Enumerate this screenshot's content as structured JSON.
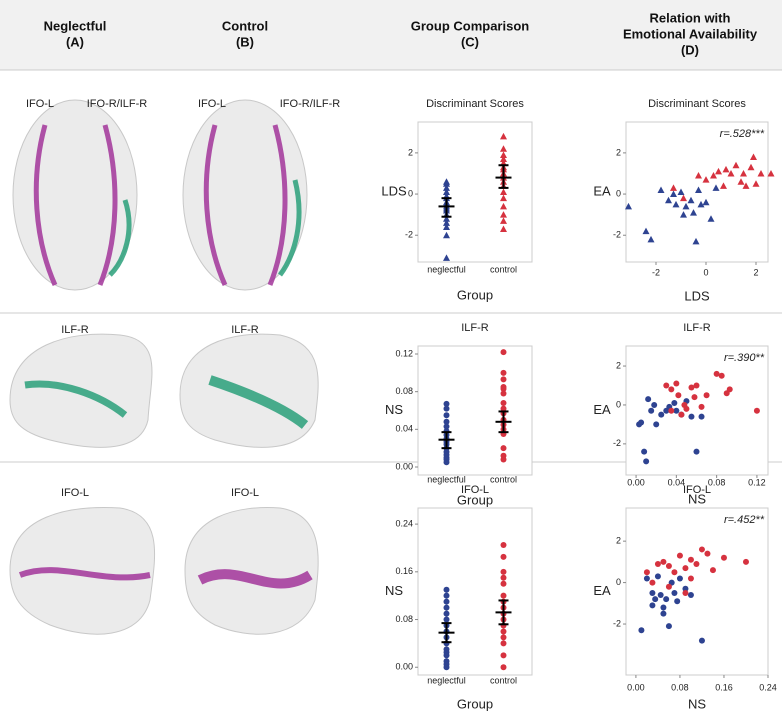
{
  "headers": [
    {
      "lines": [
        "Neglectful",
        "(A)"
      ]
    },
    {
      "lines": [
        "Control",
        "(B)"
      ]
    },
    {
      "lines": [
        "Group Comparison",
        "(C)"
      ]
    },
    {
      "lines": [
        "Relation with",
        "Emotional Availability",
        "(D)"
      ]
    }
  ],
  "brain_labels": [
    [
      "IFO-L",
      "IFO-R/ILF-R",
      "IFO-L",
      "IFO-R/ILF-R"
    ],
    [
      "ILF-R",
      "ILF-R"
    ],
    [
      "IFO-L",
      "IFO-L"
    ]
  ],
  "chart_data": [
    {
      "type": "strip",
      "title": "Discriminant Scores",
      "ylabel": "LDS",
      "xlabel": "Group",
      "marker": "triangle",
      "categories": [
        "neglectful",
        "control"
      ],
      "ylim": [
        -3.3,
        3.5
      ],
      "yticks": [
        -2,
        0,
        2
      ],
      "series": [
        {
          "color": "#2e4391",
          "values": [
            0.6,
            0.5,
            0.3,
            0.1,
            -0.1,
            -0.2,
            -0.4,
            -0.5,
            -0.6,
            -0.7,
            -0.8,
            -1.0,
            -1.2,
            -1.4,
            -1.6,
            -2.0,
            -3.1
          ],
          "mean": -0.6,
          "ci": [
            -1.1,
            -0.2
          ]
        },
        {
          "color": "#d6323f",
          "values": [
            2.8,
            2.2,
            1.9,
            1.7,
            1.5,
            1.3,
            1.2,
            1.0,
            0.8,
            0.6,
            0.4,
            0.1,
            -0.2,
            -0.6,
            -1.0,
            -1.3,
            -1.7
          ],
          "mean": 0.8,
          "ci": [
            0.3,
            1.4
          ]
        }
      ]
    },
    {
      "type": "scatter",
      "title": "Discriminant Scores",
      "ylabel": "EA",
      "xlabel": "LDS",
      "annotation": "r=.528***",
      "marker": "triangle",
      "xlim": [
        -3.2,
        2.48
      ],
      "xticks": [
        -2,
        0,
        2
      ],
      "ylim": [
        -3.3,
        3.5
      ],
      "yticks": [
        -2,
        0,
        2
      ],
      "series": [
        {
          "color": "#2e4391",
          "x": [
            -3.1,
            -2.4,
            -2.2,
            -1.8,
            -1.5,
            -1.3,
            -1.2,
            -1.0,
            -0.9,
            -0.8,
            -0.6,
            -0.5,
            -0.4,
            -0.3,
            -0.2,
            0.0,
            0.2,
            0.4
          ],
          "y": [
            -0.6,
            -1.8,
            -2.2,
            0.2,
            -0.3,
            0.0,
            -0.5,
            0.1,
            -1.0,
            -0.6,
            -0.3,
            -0.9,
            -2.3,
            0.2,
            -0.5,
            -0.4,
            -1.2,
            0.3
          ]
        },
        {
          "color": "#d6323f",
          "x": [
            -1.3,
            -0.9,
            -0.3,
            0.0,
            0.3,
            0.5,
            0.7,
            0.8,
            1.0,
            1.2,
            1.4,
            1.5,
            1.6,
            1.8,
            1.9,
            2.0,
            2.2,
            2.6
          ],
          "y": [
            0.3,
            -0.2,
            0.9,
            0.7,
            0.9,
            1.1,
            0.4,
            1.2,
            1.0,
            1.4,
            0.6,
            1.0,
            0.4,
            1.3,
            1.8,
            0.5,
            1.0,
            1.0
          ]
        }
      ]
    },
    {
      "type": "strip",
      "title": "ILF-R",
      "ylabel": "NS",
      "xlabel": "Group",
      "marker": "circle",
      "categories": [
        "neglectful",
        "control"
      ],
      "ylim": [
        -0.0085,
        0.1285
      ],
      "yticks": [
        {
          "value": 0,
          "label": "0.00"
        },
        0.04,
        0.08,
        0.12
      ],
      "series": [
        {
          "color": "#2e4391",
          "values": [
            0.067,
            0.062,
            0.055,
            0.048,
            0.043,
            0.038,
            0.034,
            0.03,
            0.027,
            0.024,
            0.02,
            0.016,
            0.013,
            0.01,
            0.008,
            0.005
          ],
          "mean": 0.029,
          "ci": [
            0.02,
            0.037
          ]
        },
        {
          "color": "#d6323f",
          "values": [
            0.122,
            0.1,
            0.093,
            0.085,
            0.083,
            0.078,
            0.068,
            0.062,
            0.057,
            0.05,
            0.045,
            0.04,
            0.035,
            0.02,
            0.012,
            0.008
          ],
          "mean": 0.048,
          "ci": [
            0.037,
            0.059
          ]
        }
      ]
    },
    {
      "type": "scatter",
      "title": "ILF-R",
      "ylabel": "EA",
      "xlabel": "NS",
      "annotation": "r=.390**",
      "marker": "circle",
      "xlim": [
        -0.01,
        0.131
      ],
      "xticks": [
        {
          "value": 0,
          "label": "0.00"
        },
        0.04,
        0.08,
        0.12
      ],
      "ylim": [
        -3.6,
        3.03
      ],
      "yticks": [
        -2,
        0,
        2
      ],
      "series": [
        {
          "color": "#2e4391",
          "x": [
            0.003,
            0.005,
            0.008,
            0.01,
            0.012,
            0.015,
            0.018,
            0.02,
            0.025,
            0.03,
            0.033,
            0.038,
            0.04,
            0.045,
            0.05,
            0.055,
            0.06,
            0.065
          ],
          "y": [
            -1.0,
            -0.9,
            -2.4,
            -2.9,
            0.3,
            -0.3,
            0.0,
            -1.0,
            -0.5,
            -0.3,
            -0.1,
            0.1,
            -0.3,
            -0.5,
            0.2,
            -0.6,
            -2.4,
            -0.6
          ]
        },
        {
          "color": "#d6323f",
          "x": [
            0.03,
            0.035,
            0.04,
            0.042,
            0.045,
            0.048,
            0.05,
            0.055,
            0.058,
            0.06,
            0.065,
            0.07,
            0.08,
            0.085,
            0.09,
            0.093,
            0.12,
            0.035
          ],
          "y": [
            1.0,
            0.8,
            1.1,
            0.5,
            -0.5,
            0.0,
            -0.2,
            0.9,
            0.4,
            1.0,
            -0.1,
            0.5,
            1.6,
            1.5,
            0.6,
            0.8,
            -0.3,
            -0.3
          ]
        }
      ]
    },
    {
      "type": "strip",
      "title": "IFO-L",
      "ylabel": "NS",
      "xlabel": "Group",
      "marker": "circle",
      "categories": [
        "neglectful",
        "control"
      ],
      "ylim": [
        -0.013,
        0.267
      ],
      "yticks": [
        {
          "value": 0,
          "label": "0.00"
        },
        0.08,
        0.16,
        0.24
      ],
      "series": [
        {
          "color": "#2e4391",
          "values": [
            0.13,
            0.12,
            0.11,
            0.1,
            0.09,
            0.08,
            0.07,
            0.06,
            0.05,
            0.04,
            0.03,
            0.025,
            0.02,
            0.01,
            0.005,
            0.0
          ],
          "mean": 0.058,
          "ci": [
            0.042,
            0.074
          ]
        },
        {
          "color": "#d6323f",
          "values": [
            0.205,
            0.185,
            0.16,
            0.15,
            0.14,
            0.12,
            0.11,
            0.1,
            0.09,
            0.08,
            0.07,
            0.06,
            0.05,
            0.04,
            0.02,
            0.0
          ],
          "mean": 0.092,
          "ci": [
            0.072,
            0.112
          ]
        }
      ]
    },
    {
      "type": "scatter",
      "title": "IFO-L",
      "ylabel": "EA",
      "xlabel": "NS",
      "annotation": "r=.452**",
      "marker": "circle",
      "xlim": [
        -0.018,
        0.24
      ],
      "xticks": [
        {
          "value": 0,
          "label": "0.00"
        },
        0.08,
        0.16,
        0.24
      ],
      "ylim": [
        -4.46,
        3.6
      ],
      "yticks": [
        -2,
        0,
        2
      ],
      "series": [
        {
          "color": "#2e4391",
          "x": [
            0.01,
            0.02,
            0.03,
            0.035,
            0.04,
            0.045,
            0.05,
            0.055,
            0.06,
            0.065,
            0.07,
            0.075,
            0.08,
            0.09,
            0.1,
            0.12,
            0.05,
            0.03
          ],
          "y": [
            -2.3,
            0.2,
            -0.5,
            -0.8,
            0.3,
            -0.6,
            -1.2,
            -0.8,
            -2.1,
            0.0,
            -0.5,
            -0.9,
            0.2,
            -0.3,
            -0.6,
            -2.8,
            -1.5,
            -1.1
          ]
        },
        {
          "color": "#d6323f",
          "x": [
            0.02,
            0.03,
            0.05,
            0.06,
            0.07,
            0.08,
            0.09,
            0.1,
            0.11,
            0.12,
            0.13,
            0.14,
            0.16,
            0.2,
            0.06,
            0.09,
            0.04,
            0.1
          ],
          "y": [
            0.5,
            0.0,
            1.0,
            0.8,
            0.5,
            1.3,
            0.7,
            1.1,
            0.9,
            1.6,
            1.4,
            0.6,
            1.2,
            1.0,
            -0.2,
            -0.5,
            0.9,
            0.2
          ]
        }
      ]
    }
  ]
}
